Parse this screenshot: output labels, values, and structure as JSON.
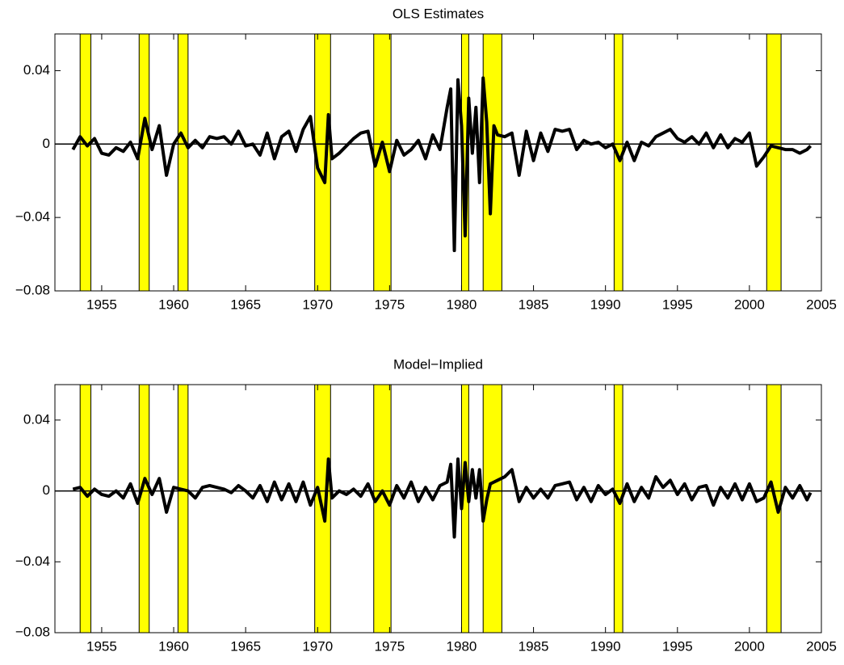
{
  "chart_data": [
    {
      "type": "line",
      "title": "OLS Estimates",
      "x": [
        1953,
        1953.5,
        1954,
        1954.5,
        1955,
        1955.5,
        1956,
        1956.5,
        1957,
        1957.5,
        1958,
        1958.5,
        1959,
        1959.5,
        1960,
        1960.5,
        1961,
        1961.5,
        1962,
        1962.5,
        1963,
        1963.5,
        1964,
        1964.5,
        1965,
        1965.5,
        1966,
        1966.5,
        1967,
        1967.5,
        1968,
        1968.5,
        1969,
        1969.5,
        1970,
        1970.5,
        1970.75,
        1971,
        1971.5,
        1972,
        1972.5,
        1973,
        1973.5,
        1974,
        1974.5,
        1975,
        1975.5,
        1976,
        1976.5,
        1977,
        1977.5,
        1978,
        1978.5,
        1979,
        1979.25,
        1979.5,
        1979.75,
        1980,
        1980.25,
        1980.5,
        1980.75,
        1981,
        1981.25,
        1981.5,
        1981.75,
        1982,
        1982.25,
        1982.5,
        1983,
        1983.5,
        1984,
        1984.5,
        1985,
        1985.5,
        1986,
        1986.5,
        1987,
        1987.5,
        1988,
        1988.5,
        1989,
        1989.5,
        1990,
        1990.5,
        1991,
        1991.5,
        1992,
        1992.5,
        1993,
        1993.5,
        1994,
        1994.5,
        1995,
        1995.5,
        1996,
        1996.5,
        1997,
        1997.5,
        1998,
        1998.5,
        1999,
        1999.5,
        2000,
        2000.5,
        2001,
        2001.5,
        2002,
        2002.5,
        2003,
        2003.5,
        2004,
        2004.25
      ],
      "series": [
        {
          "color": "#000000",
          "values": [
            -0.003,
            0.004,
            -0.001,
            0.003,
            -0.005,
            -0.006,
            -0.002,
            -0.004,
            0.001,
            -0.008,
            0.014,
            -0.003,
            0.01,
            -0.017,
            0.0,
            0.006,
            -0.002,
            0.002,
            -0.002,
            0.004,
            0.003,
            0.004,
            0.0,
            0.007,
            -0.001,
            0.0,
            -0.006,
            0.006,
            -0.008,
            0.004,
            0.007,
            -0.004,
            0.008,
            0.015,
            -0.013,
            -0.021,
            0.016,
            -0.008,
            -0.005,
            -0.001,
            0.003,
            0.006,
            0.007,
            -0.012,
            0.001,
            -0.015,
            0.002,
            -0.006,
            -0.003,
            0.002,
            -0.008,
            0.005,
            -0.003,
            0.02,
            0.03,
            -0.058,
            0.035,
            0.01,
            -0.05,
            0.025,
            -0.005,
            0.02,
            -0.021,
            0.036,
            0.012,
            -0.038,
            0.01,
            0.005,
            0.004,
            0.006,
            -0.017,
            0.007,
            -0.009,
            0.006,
            -0.004,
            0.008,
            0.007,
            0.008,
            -0.003,
            0.002,
            0.0,
            0.001,
            -0.002,
            0.0,
            -0.009,
            0.001,
            -0.009,
            0.001,
            -0.001,
            0.004,
            0.006,
            0.008,
            0.003,
            0.001,
            0.004,
            0.0,
            0.006,
            -0.002,
            0.005,
            -0.002,
            0.003,
            0.001,
            0.006,
            -0.012,
            -0.007,
            -0.001,
            -0.002,
            -0.003,
            -0.003,
            -0.005,
            -0.003,
            -0.001
          ]
        }
      ],
      "xlim": [
        1951.75,
        2005
      ],
      "ylim": [
        -0.08,
        0.06
      ],
      "xticks": [
        1955,
        1960,
        1965,
        1970,
        1975,
        1980,
        1985,
        1990,
        1995,
        2000,
        2005
      ],
      "yticks": [
        {
          "value": -0.08,
          "label": "−0.08"
        },
        {
          "value": -0.04,
          "label": "−0.04"
        },
        0,
        0.04
      ],
      "hline": 0,
      "recessions": [
        [
          1953.5,
          1954.25
        ],
        [
          1957.6,
          1958.3
        ],
        [
          1960.3,
          1961.0
        ],
        [
          1969.8,
          1970.9
        ],
        [
          1973.9,
          1975.1
        ],
        [
          1980.0,
          1980.5
        ],
        [
          1981.5,
          1982.8
        ],
        [
          1990.6,
          1991.2
        ],
        [
          2001.2,
          2002.2
        ]
      ],
      "recession_color": "#ffff00"
    },
    {
      "type": "line",
      "title": "Model−Implied",
      "x": [
        1953,
        1953.5,
        1954,
        1954.5,
        1955,
        1955.5,
        1956,
        1956.5,
        1957,
        1957.5,
        1958,
        1958.5,
        1959,
        1959.5,
        1960,
        1960.5,
        1961,
        1961.5,
        1962,
        1962.5,
        1963,
        1963.5,
        1964,
        1964.5,
        1965,
        1965.5,
        1966,
        1966.5,
        1967,
        1967.5,
        1968,
        1968.5,
        1969,
        1969.5,
        1970,
        1970.5,
        1970.75,
        1971,
        1971.5,
        1972,
        1972.5,
        1973,
        1973.5,
        1974,
        1974.5,
        1975,
        1975.5,
        1976,
        1976.5,
        1977,
        1977.5,
        1978,
        1978.5,
        1979,
        1979.25,
        1979.5,
        1979.75,
        1980,
        1980.25,
        1980.5,
        1980.75,
        1981,
        1981.25,
        1981.5,
        1981.75,
        1982,
        1982.25,
        1982.5,
        1983,
        1983.5,
        1984,
        1984.5,
        1985,
        1985.5,
        1986,
        1986.5,
        1987,
        1987.5,
        1988,
        1988.5,
        1989,
        1989.5,
        1990,
        1990.5,
        1991,
        1991.5,
        1992,
        1992.5,
        1993,
        1993.5,
        1994,
        1994.5,
        1995,
        1995.5,
        1996,
        1996.5,
        1997,
        1997.5,
        1998,
        1998.5,
        1999,
        1999.5,
        2000,
        2000.5,
        2001,
        2001.5,
        2002,
        2002.5,
        2003,
        2003.5,
        2004,
        2004.25
      ],
      "series": [
        {
          "color": "#000000",
          "values": [
            0.001,
            0.002,
            -0.003,
            0.001,
            -0.002,
            -0.003,
            0.0,
            -0.004,
            0.004,
            -0.007,
            0.007,
            -0.002,
            0.007,
            -0.012,
            0.002,
            0.001,
            0.0,
            -0.004,
            0.002,
            0.003,
            0.002,
            0.001,
            -0.001,
            0.003,
            0.0,
            -0.004,
            0.003,
            -0.006,
            0.005,
            -0.005,
            0.004,
            -0.006,
            0.005,
            -0.008,
            0.002,
            -0.017,
            0.018,
            -0.004,
            0.0,
            -0.002,
            0.001,
            -0.003,
            0.004,
            -0.006,
            0.0,
            -0.008,
            0.003,
            -0.004,
            0.005,
            -0.006,
            0.002,
            -0.005,
            0.003,
            0.005,
            0.015,
            -0.026,
            0.018,
            -0.01,
            0.016,
            -0.006,
            0.012,
            -0.004,
            0.012,
            -0.017,
            -0.005,
            0.004,
            0.005,
            0.006,
            0.008,
            0.012,
            -0.006,
            0.002,
            -0.004,
            0.001,
            -0.004,
            0.003,
            0.004,
            0.005,
            -0.005,
            0.002,
            -0.006,
            0.003,
            -0.002,
            0.001,
            -0.007,
            0.004,
            -0.006,
            0.002,
            -0.004,
            0.008,
            0.002,
            0.006,
            -0.002,
            0.004,
            -0.005,
            0.002,
            0.003,
            -0.008,
            0.002,
            -0.004,
            0.004,
            -0.005,
            0.004,
            -0.006,
            -0.004,
            0.005,
            -0.012,
            0.002,
            -0.004,
            0.003,
            -0.005,
            -0.001
          ]
        }
      ],
      "xlim": [
        1951.75,
        2005
      ],
      "ylim": [
        -0.08,
        0.06
      ],
      "xticks": [
        1955,
        1960,
        1965,
        1970,
        1975,
        1980,
        1985,
        1990,
        1995,
        2000,
        2005
      ],
      "yticks": [
        {
          "value": -0.08,
          "label": "−0.08"
        },
        {
          "value": -0.04,
          "label": "−0.04"
        },
        0,
        0.04
      ],
      "hline": 0,
      "recessions": [
        [
          1953.5,
          1954.25
        ],
        [
          1957.6,
          1958.3
        ],
        [
          1960.3,
          1961.0
        ],
        [
          1969.8,
          1970.9
        ],
        [
          1973.9,
          1975.1
        ],
        [
          1980.0,
          1980.5
        ],
        [
          1981.5,
          1982.8
        ],
        [
          1990.6,
          1991.2
        ],
        [
          2001.2,
          2002.2
        ]
      ],
      "recession_color": "#ffff00"
    }
  ]
}
